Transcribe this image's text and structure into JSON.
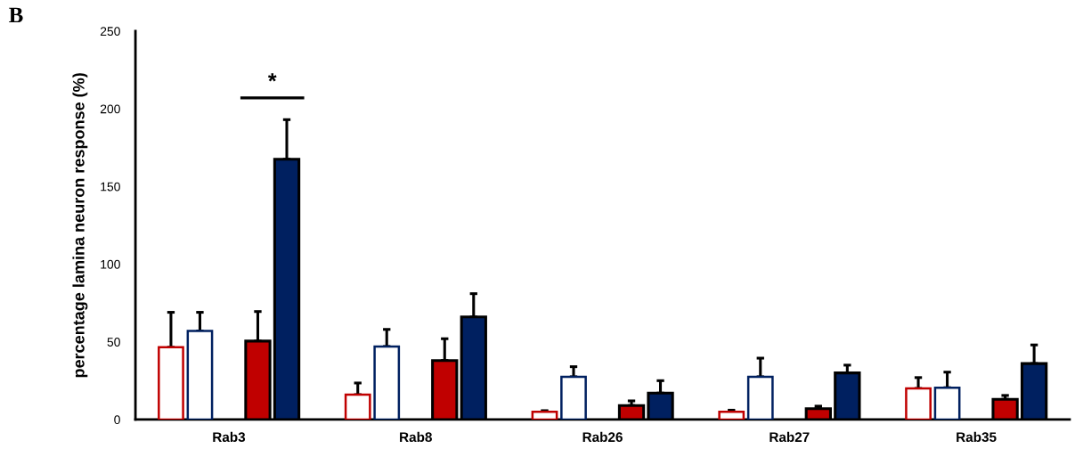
{
  "chart_data": {
    "type": "bar",
    "ylabel": "percentage lamina neuron response (%)",
    "categories": [
      "Rab3",
      "Rab8",
      "Rab26",
      "Rab27",
      "Rab35"
    ],
    "series": [
      {
        "color": "#c00000",
        "values": [
          46.5,
          16,
          5,
          5,
          20
        ],
        "errors": [
          [
            46.5,
            69
          ],
          [
            16,
            23.5
          ],
          [
            5,
            5.7
          ],
          [
            5,
            6
          ],
          [
            20,
            27
          ]
        ]
      },
      {
        "color": "#002060",
        "values": [
          57,
          47,
          27.5,
          27.5,
          20.5
        ],
        "errors": [
          [
            57,
            69
          ],
          [
            47,
            58
          ],
          [
            27.5,
            34
          ],
          [
            27.5,
            39.5
          ],
          [
            20.5,
            30.5
          ]
        ]
      },
      {
        "color": "#c00000",
        "values": [
          50.5,
          38,
          9,
          7,
          13
        ],
        "errors": [
          [
            50.5,
            69.5
          ],
          [
            38,
            52
          ],
          [
            9,
            12
          ],
          [
            7,
            8.6
          ],
          [
            13,
            15.5
          ]
        ]
      },
      {
        "color": "#002060",
        "values": [
          167.5,
          66,
          17,
          30,
          36
        ],
        "errors": [
          [
            167.5,
            193
          ],
          [
            66,
            81
          ],
          [
            17,
            25
          ],
          [
            30,
            35
          ],
          [
            36,
            48
          ]
        ]
      }
    ],
    "ylim": [
      0,
      250
    ],
    "yticks": [
      0,
      50,
      100,
      150,
      200,
      250
    ],
    "grid": false,
    "legend": false,
    "annotations": [
      "B",
      "*"
    ]
  }
}
